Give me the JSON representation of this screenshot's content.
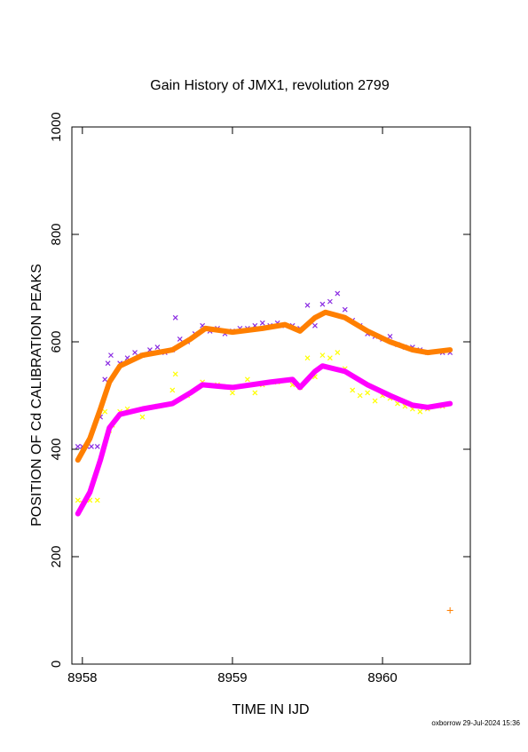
{
  "chart_data": {
    "type": "line",
    "title": "Gain History of JMX1, revolution 2799",
    "x_label": "TIME IN IJD",
    "y_label": "POSITION OF Cd CALIBRATION PEAKS",
    "footer": "oxborrow 29-Jul-2024 15:36",
    "xlim": [
      8957.93,
      8960.585
    ],
    "ylim": [
      0,
      1000
    ],
    "xticks": [
      8958,
      8959,
      8960
    ],
    "yticks": [
      0,
      200,
      400,
      600,
      800,
      1000
    ],
    "series": [
      {
        "style": "points-x",
        "color": "#8a2be2",
        "x": [
          8957.97,
          8958.0,
          8958.03,
          8958.06,
          8958.1,
          8958.12,
          8958.15,
          8958.17,
          8958.19,
          8958.25,
          8958.3,
          8958.35,
          8958.4,
          8958.45,
          8958.5,
          8958.55,
          8958.6,
          8958.62,
          8958.65,
          8958.7,
          8958.75,
          8958.8,
          8958.85,
          8958.9,
          8958.95,
          8959.0,
          8959.05,
          8959.1,
          8959.15,
          8959.2,
          8959.25,
          8959.3,
          8959.35,
          8959.4,
          8959.45,
          8959.5,
          8959.55,
          8959.6,
          8959.65,
          8959.7,
          8959.75,
          8959.8,
          8959.85,
          8959.9,
          8959.95,
          8960.0,
          8960.05,
          8960.1,
          8960.15,
          8960.2,
          8960.25,
          8960.3,
          8960.4,
          8960.45
        ],
        "values": [
          405,
          405,
          405,
          405,
          405,
          460,
          530,
          560,
          575,
          560,
          570,
          580,
          575,
          585,
          590,
          580,
          585,
          645,
          605,
          600,
          615,
          630,
          620,
          625,
          615,
          620,
          625,
          625,
          630,
          635,
          630,
          635,
          630,
          630,
          625,
          668,
          630,
          670,
          675,
          690,
          660,
          640,
          630,
          615,
          610,
          605,
          610,
          595,
          590,
          590,
          585,
          580,
          580,
          580
        ]
      },
      {
        "style": "points-x",
        "color": "#ffff00",
        "x": [
          8957.97,
          8958.0,
          8958.05,
          8958.1,
          8958.15,
          8958.18,
          8958.2,
          8958.25,
          8958.3,
          8958.4,
          8958.5,
          8958.6,
          8958.62,
          8958.7,
          8958.8,
          8958.9,
          8959.0,
          8959.1,
          8959.15,
          8959.2,
          8959.3,
          8959.4,
          8959.45,
          8959.5,
          8959.55,
          8959.6,
          8959.65,
          8959.7,
          8959.75,
          8959.8,
          8959.85,
          8959.9,
          8959.95,
          8960.0,
          8960.05,
          8960.1,
          8960.15,
          8960.2,
          8960.25,
          8960.3,
          8960.4
        ],
        "values": [
          305,
          300,
          305,
          305,
          470,
          435,
          445,
          470,
          475,
          460,
          480,
          510,
          540,
          500,
          525,
          520,
          505,
          530,
          505,
          520,
          525,
          520,
          515,
          570,
          535,
          575,
          570,
          580,
          550,
          510,
          500,
          505,
          490,
          500,
          495,
          485,
          480,
          475,
          470,
          475,
          480
        ]
      },
      {
        "style": "line",
        "color": "#ff7f00",
        "x": [
          8957.97,
          8958.05,
          8958.12,
          8958.18,
          8958.25,
          8958.4,
          8958.6,
          8958.72,
          8958.82,
          8959.0,
          8959.2,
          8959.35,
          8959.45,
          8959.55,
          8959.62,
          8959.75,
          8959.9,
          8960.05,
          8960.2,
          8960.3,
          8960.45
        ],
        "values": [
          380,
          420,
          475,
          525,
          555,
          575,
          585,
          605,
          625,
          618,
          625,
          632,
          620,
          645,
          655,
          645,
          620,
          600,
          585,
          580,
          585
        ]
      },
      {
        "style": "line",
        "color": "#ff00ff",
        "x": [
          8957.97,
          8958.05,
          8958.12,
          8958.18,
          8958.25,
          8958.4,
          8958.6,
          8958.72,
          8958.8,
          8959.0,
          8959.25,
          8959.4,
          8959.45,
          8959.55,
          8959.6,
          8959.75,
          8959.9,
          8960.05,
          8960.2,
          8960.3,
          8960.45
        ],
        "values": [
          280,
          320,
          380,
          440,
          465,
          475,
          485,
          505,
          520,
          515,
          525,
          530,
          515,
          545,
          555,
          545,
          520,
          500,
          482,
          478,
          485
        ]
      },
      {
        "style": "points-plus",
        "color": "#ff7f00",
        "x": [
          8960.45
        ],
        "values": [
          100
        ]
      }
    ]
  }
}
